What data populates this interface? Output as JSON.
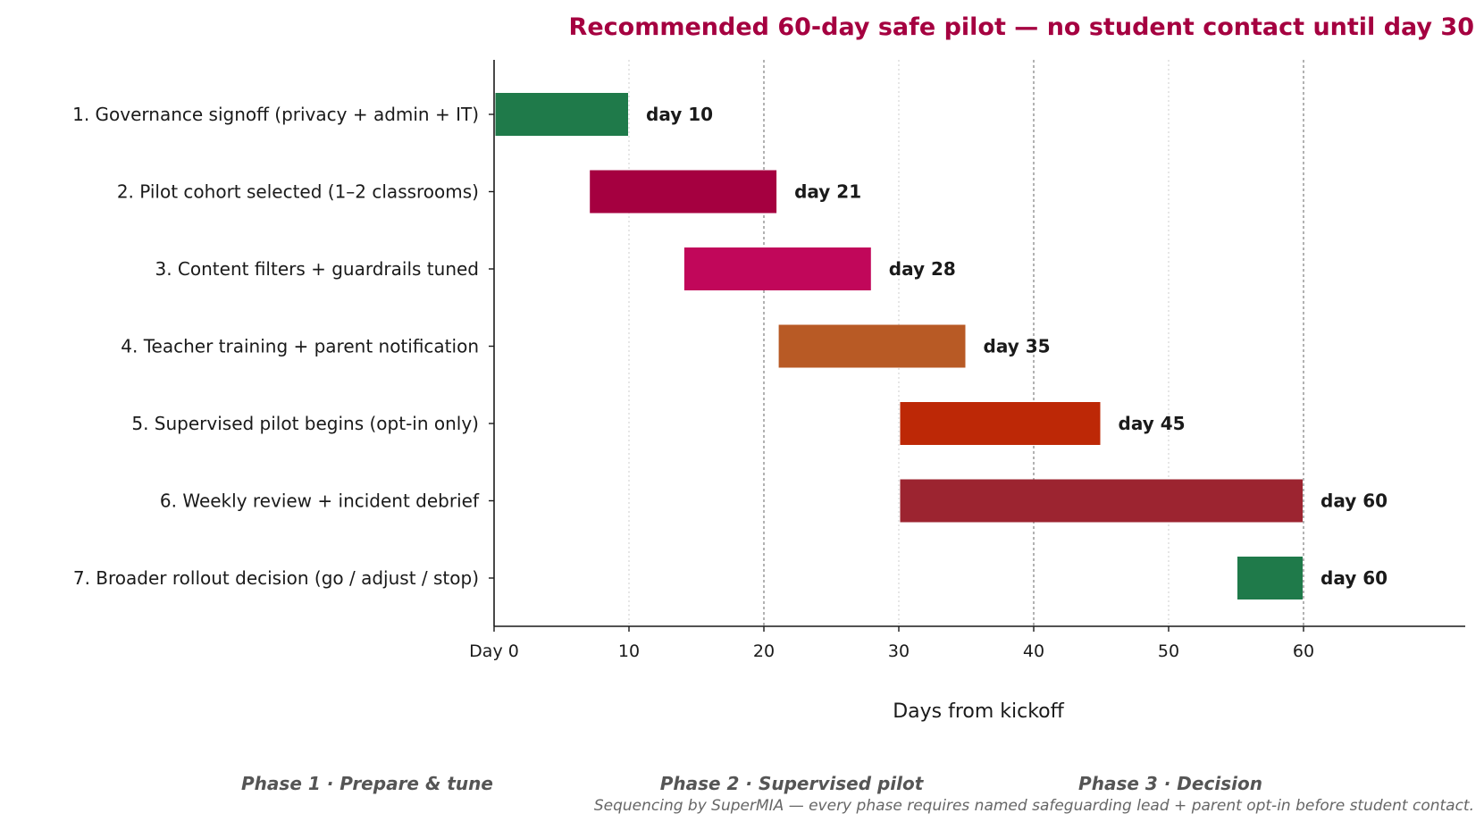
{
  "chart_data": {
    "type": "gantt",
    "title": "Recommended 60-day safe pilot — no student contact until day 30",
    "xlabel": "Days from kickoff",
    "xlim": [
      0,
      72
    ],
    "x_ticks": [
      {
        "value": 0,
        "label": "Day 0"
      },
      {
        "value": 10,
        "label": "10"
      },
      {
        "value": 20,
        "label": "20"
      },
      {
        "value": 30,
        "label": "30"
      },
      {
        "value": 40,
        "label": "40"
      },
      {
        "value": 50,
        "label": "50"
      },
      {
        "value": 60,
        "label": "60"
      }
    ],
    "phase_lines": [
      20,
      40,
      60
    ],
    "minor_lines": [
      10,
      30,
      50
    ],
    "tasks": [
      {
        "label": "1. Governance signoff  (privacy + admin + IT)",
        "start": 0,
        "end": 10,
        "end_label": "day 10",
        "color": "#1f7a4a"
      },
      {
        "label": "2. Pilot cohort selected  (1–2 classrooms)",
        "start": 7,
        "end": 21,
        "end_label": "day 21",
        "color": "#a50040"
      },
      {
        "label": "3. Content filters + guardrails tuned",
        "start": 14,
        "end": 28,
        "end_label": "day 28",
        "color": "#c1075a"
      },
      {
        "label": "4. Teacher training + parent notification",
        "start": 21,
        "end": 35,
        "end_label": "day 35",
        "color": "#b85a25"
      },
      {
        "label": "5. Supervised pilot begins  (opt-in only)",
        "start": 30,
        "end": 45,
        "end_label": "day 45",
        "color": "#bd2806"
      },
      {
        "label": "6. Weekly review + incident debrief",
        "start": 30,
        "end": 60,
        "end_label": "day 60",
        "color": "#9c2430"
      },
      {
        "label": "7. Broader rollout decision  (go / adjust / stop)",
        "start": 55,
        "end": 60,
        "end_label": "day 60",
        "color": "#1f7a4a"
      }
    ],
    "phases": [
      "Phase 1  ·  Prepare & tune",
      "Phase 2  ·  Supervised pilot",
      "Phase 3  ·  Decision"
    ],
    "footnote": "Sequencing by SuperMIA — every phase requires named safeguarding lead + parent opt-in before student contact."
  },
  "colors": {
    "title": "#a50040",
    "axis": "#1a1a1a",
    "grid": "#aaaaaa",
    "phase_text": "#555555"
  }
}
